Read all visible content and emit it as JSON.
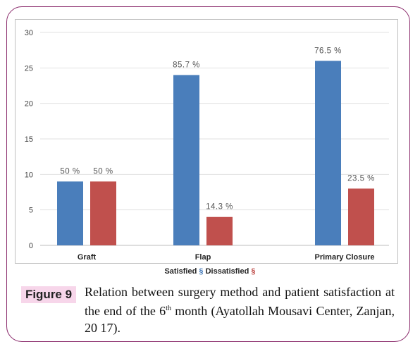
{
  "chart_data": {
    "type": "bar",
    "categories": [
      "Graft",
      "Flap",
      "Primary Closure"
    ],
    "series": [
      {
        "name": "Satisfied",
        "values": [
          9,
          24,
          26
        ],
        "labels": [
          "50 %",
          "85.7 %",
          "76.5 %"
        ],
        "color": "#4a7ebb"
      },
      {
        "name": "Dissatisfied",
        "values": [
          9,
          4,
          8
        ],
        "labels": [
          "50 %",
          "14.3 %",
          "23.5 %"
        ],
        "color": "#c0504d"
      }
    ],
    "ylim": [
      0,
      30
    ],
    "yticks": [
      0,
      5,
      10,
      15,
      20,
      25,
      30
    ],
    "grid": true,
    "legend_position": "bottom",
    "legend_symbol": "§"
  },
  "caption": {
    "label": "Figure 9",
    "text_before_sup": "Relation between surgery method and patient satisfaction at the end of the 6",
    "sup": "th",
    "text_after_sup": " month (Ayatollah Mousavi Center, Zanjan, 20 17)."
  },
  "colors": {
    "frame": "#8a2a6b",
    "caption_bg": "#f7d6ea"
  }
}
